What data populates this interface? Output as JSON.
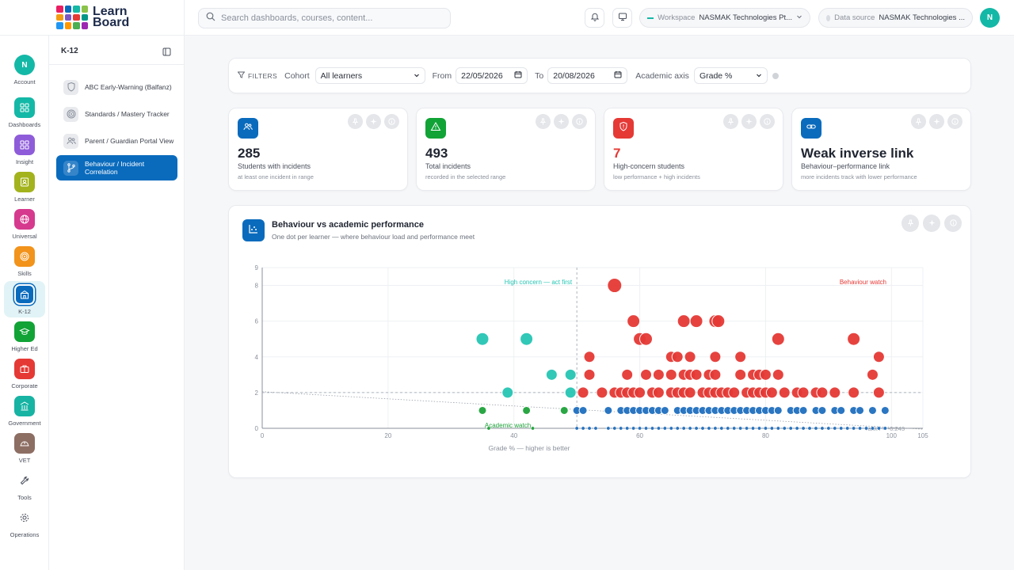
{
  "brand": {
    "line1": "Learn",
    "line2": "Board",
    "tile_colors": [
      "#e91e63",
      "#0a6bbd",
      "#14b8a6",
      "#8bc34a",
      "#f39c12",
      "#7e57c2",
      "#e53935",
      "#009688",
      "#2196f3",
      "#ff9800",
      "#4caf50",
      "#9c27b0"
    ]
  },
  "search": {
    "placeholder": "Search dashboards, courses, content..."
  },
  "topbar": {
    "workspace_label": "Workspace",
    "workspace_value": "NASMAK Technologies Pt...",
    "datasource_label": "Data source",
    "datasource_value": "NASMAK Technologies ...",
    "avatar_initial": "N"
  },
  "rail": [
    {
      "label": "Account",
      "icon": "avatar",
      "color": "#14b8a6",
      "initial": "N"
    },
    {
      "label": "Dashboards",
      "icon": "grid-icon",
      "color": "#14b8a6"
    },
    {
      "label": "Insight",
      "icon": "grid-icon",
      "color": "#8e5cd9"
    },
    {
      "label": "Learner",
      "icon": "id-card-icon",
      "color": "#a3b31d"
    },
    {
      "label": "Universal",
      "icon": "globe-icon",
      "color": "#d63a8e"
    },
    {
      "label": "Skills",
      "icon": "target-icon",
      "color": "#f2931b"
    },
    {
      "label": "K-12",
      "icon": "school-icon",
      "color": "#0a6bbd",
      "active": true
    },
    {
      "label": "Higher Ed",
      "icon": "graduation-cap-icon",
      "color": "#11a336"
    },
    {
      "label": "Corporate",
      "icon": "briefcase-icon",
      "color": "#e53935"
    },
    {
      "label": "Government",
      "icon": "building-icon",
      "color": "#17b3a3"
    },
    {
      "label": "VET",
      "icon": "hardhat-icon",
      "color": "#8d6e63"
    },
    {
      "label": "Tools",
      "icon": "wrench-icon",
      "color": "#ffffff"
    },
    {
      "label": "Operations",
      "icon": "gear-icon",
      "color": "#ffffff"
    }
  ],
  "panel": {
    "title": "K-12",
    "items": [
      {
        "label": "ABC Early-Warning (Balfanz)",
        "icon": "shield-icon"
      },
      {
        "label": "Standards / Mastery Tracker",
        "icon": "target-icon"
      },
      {
        "label": "Parent / Guardian Portal View",
        "icon": "users-icon"
      },
      {
        "label": "Behaviour / Incident Correlation",
        "icon": "branch-icon",
        "active": true
      }
    ]
  },
  "filters": {
    "label": "FILTERS",
    "cohort_label": "Cohort",
    "cohort_value": "All learners",
    "from_label": "From",
    "from_value": "22/05/2026",
    "to_label": "To",
    "to_value": "20/08/2026",
    "axis_label": "Academic axis",
    "axis_value": "Grade %"
  },
  "kpis": [
    {
      "value": "285",
      "label": "Students with incidents",
      "sub": "at least one incident in range",
      "icon": "users-icon",
      "color": "#0a6bbd"
    },
    {
      "value": "493",
      "label": "Total incidents",
      "sub": "recorded in the selected range",
      "icon": "warning-icon",
      "color": "#11a336"
    },
    {
      "value": "7",
      "label": "High-concern students",
      "sub": "low performance + high incidents",
      "icon": "shield-alert-icon",
      "color": "#e53935",
      "value_color": "#e53935"
    },
    {
      "value": "Weak inverse link",
      "label": "Behaviour–performance link",
      "sub": "more incidents track with lower performance",
      "icon": "link-icon",
      "color": "#0a6bbd"
    }
  ],
  "chart": {
    "title": "Behaviour vs academic performance",
    "subtitle": "One dot per learner — where behaviour load and performance meet",
    "icon": "scatter-chart-icon"
  },
  "chart_data": {
    "type": "scatter",
    "title": "Behaviour vs academic performance",
    "xlabel": "Grade % — higher is better",
    "ylabel": "",
    "xlim": [
      0,
      105
    ],
    "ylim": [
      0,
      9
    ],
    "x_ticks": [
      0,
      20,
      40,
      60,
      80,
      100,
      105
    ],
    "y_ticks": [
      0,
      2,
      4,
      6,
      8,
      9
    ],
    "grid": true,
    "divider_x": 50,
    "divider_y": 2,
    "quadrant_labels": {
      "top_left": "High concern — act first",
      "top_right": "Behaviour watch",
      "bottom_left": "Academic watch"
    },
    "trend_label": "rank r = -0.243",
    "trend": {
      "x": [
        0,
        105
      ],
      "y": [
        2.05,
        -0.05
      ]
    },
    "series": [
      {
        "color": "#e53935",
        "points": [
          [
            56,
            8
          ],
          [
            59,
            6
          ],
          [
            60,
            5
          ],
          [
            61,
            5
          ],
          [
            67,
            6
          ],
          [
            69,
            6
          ],
          [
            72,
            6
          ],
          [
            72.5,
            6
          ],
          [
            82,
            5
          ],
          [
            94,
            5
          ],
          [
            52,
            4
          ],
          [
            65,
            4
          ],
          [
            66,
            4
          ],
          [
            68,
            4
          ],
          [
            72,
            4
          ],
          [
            76,
            4
          ],
          [
            98,
            4
          ],
          [
            52,
            3
          ],
          [
            58,
            3
          ],
          [
            61,
            3
          ],
          [
            63,
            3
          ],
          [
            65,
            3
          ],
          [
            67,
            3
          ],
          [
            68,
            3
          ],
          [
            69,
            3
          ],
          [
            71,
            3
          ],
          [
            72,
            3
          ],
          [
            76,
            3
          ],
          [
            78,
            3
          ],
          [
            79,
            3
          ],
          [
            80,
            3
          ],
          [
            82,
            3
          ],
          [
            97,
            3
          ],
          [
            51,
            2
          ],
          [
            54,
            2
          ],
          [
            56,
            2
          ],
          [
            57,
            2
          ],
          [
            58,
            2
          ],
          [
            59,
            2
          ],
          [
            60,
            2
          ],
          [
            62,
            2
          ],
          [
            63,
            2
          ],
          [
            65,
            2
          ],
          [
            66,
            2
          ],
          [
            67,
            2
          ],
          [
            68,
            2
          ],
          [
            70,
            2
          ],
          [
            71,
            2
          ],
          [
            72,
            2
          ],
          [
            73,
            2
          ],
          [
            74,
            2
          ],
          [
            75,
            2
          ],
          [
            77,
            2
          ],
          [
            78,
            2
          ],
          [
            79,
            2
          ],
          [
            80,
            2
          ],
          [
            81,
            2
          ],
          [
            83,
            2
          ],
          [
            85,
            2
          ],
          [
            86,
            2
          ],
          [
            88,
            2
          ],
          [
            89,
            2
          ],
          [
            91,
            2
          ],
          [
            94,
            2
          ],
          [
            98,
            2
          ]
        ]
      },
      {
        "color": "#26c6b4",
        "points": [
          [
            35,
            5
          ],
          [
            42,
            5
          ],
          [
            46,
            3
          ],
          [
            49,
            3
          ],
          [
            39,
            2
          ],
          [
            49,
            2
          ]
        ]
      },
      {
        "color": "#1fa33a",
        "points": [
          [
            35,
            1
          ],
          [
            42,
            1
          ],
          [
            48,
            1
          ],
          [
            36,
            0
          ],
          [
            43,
            0
          ]
        ]
      },
      {
        "color": "#1f6fbf",
        "points": [
          [
            50,
            1
          ],
          [
            51,
            1
          ],
          [
            55,
            1
          ],
          [
            57,
            1
          ],
          [
            58,
            1
          ],
          [
            59,
            1
          ],
          [
            60,
            1
          ],
          [
            61,
            1
          ],
          [
            62,
            1
          ],
          [
            63,
            1
          ],
          [
            64,
            1
          ],
          [
            66,
            1
          ],
          [
            67,
            1
          ],
          [
            68,
            1
          ],
          [
            69,
            1
          ],
          [
            70,
            1
          ],
          [
            71,
            1
          ],
          [
            72,
            1
          ],
          [
            73,
            1
          ],
          [
            74,
            1
          ],
          [
            75,
            1
          ],
          [
            76,
            1
          ],
          [
            77,
            1
          ],
          [
            78,
            1
          ],
          [
            79,
            1
          ],
          [
            80,
            1
          ],
          [
            81,
            1
          ],
          [
            82,
            1
          ],
          [
            84,
            1
          ],
          [
            85,
            1
          ],
          [
            86,
            1
          ],
          [
            88,
            1
          ],
          [
            89,
            1
          ],
          [
            91,
            1
          ],
          [
            92,
            1
          ],
          [
            94,
            1
          ],
          [
            95,
            1
          ],
          [
            97,
            1
          ],
          [
            99,
            1
          ],
          [
            50,
            0
          ],
          [
            51,
            0
          ],
          [
            52,
            0
          ],
          [
            53,
            0
          ],
          [
            55,
            0
          ],
          [
            56,
            0
          ],
          [
            57,
            0
          ],
          [
            58,
            0
          ],
          [
            59,
            0
          ],
          [
            60,
            0
          ],
          [
            61,
            0
          ],
          [
            62,
            0
          ],
          [
            63,
            0
          ],
          [
            64,
            0
          ],
          [
            65,
            0
          ],
          [
            66,
            0
          ],
          [
            67,
            0
          ],
          [
            68,
            0
          ],
          [
            69,
            0
          ],
          [
            70,
            0
          ],
          [
            71,
            0
          ],
          [
            72,
            0
          ],
          [
            73,
            0
          ],
          [
            74,
            0
          ],
          [
            75,
            0
          ],
          [
            76,
            0
          ],
          [
            77,
            0
          ],
          [
            78,
            0
          ],
          [
            79,
            0
          ],
          [
            80,
            0
          ],
          [
            81,
            0
          ],
          [
            82,
            0
          ],
          [
            83,
            0
          ],
          [
            84,
            0
          ],
          [
            85,
            0
          ],
          [
            86,
            0
          ],
          [
            87,
            0
          ],
          [
            88,
            0
          ],
          [
            89,
            0
          ],
          [
            90,
            0
          ],
          [
            91,
            0
          ],
          [
            92,
            0
          ],
          [
            93,
            0
          ],
          [
            94,
            0
          ],
          [
            95,
            0
          ],
          [
            96,
            0
          ],
          [
            97,
            0
          ],
          [
            98,
            0
          ],
          [
            99,
            0
          ]
        ]
      }
    ]
  }
}
